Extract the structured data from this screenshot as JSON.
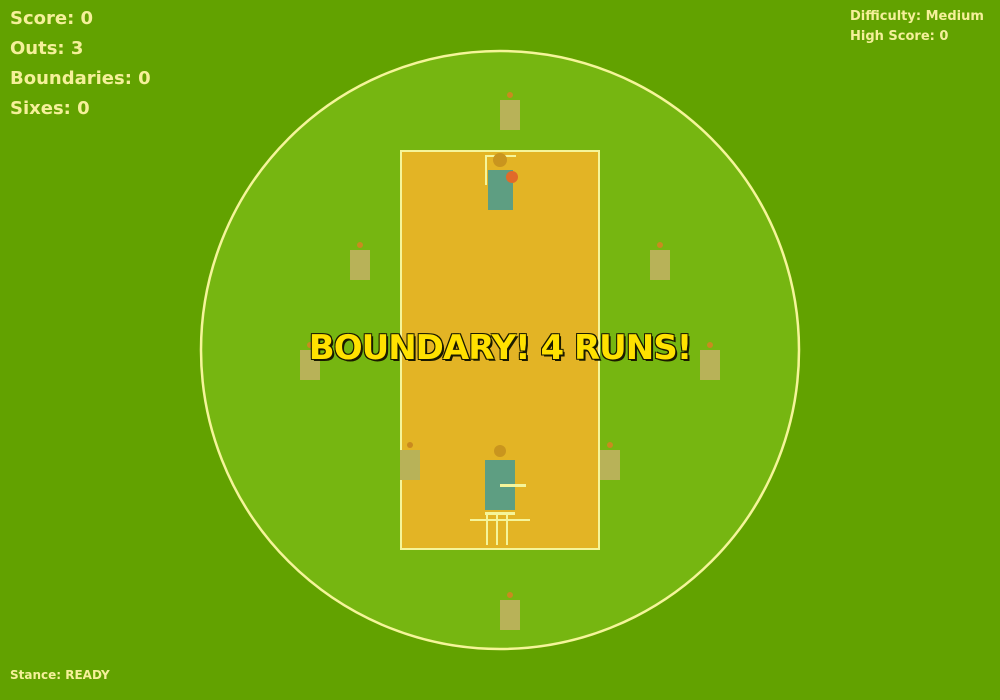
{
  "hud": {
    "score": "Score: 0",
    "outs": "Outs: 3",
    "boundaries": "Boundaries: 0",
    "sixes": "Sixes: 0",
    "difficulty": "Difficulty: Medium",
    "high_score": "High Score: 0"
  },
  "stance": "Stance: READY",
  "banner": "BOUNDARY! 4 RUNS!",
  "colors": {
    "outfield": "#62a200",
    "infield": "#76b611",
    "boundary_rope": "#f5f59a",
    "pitch": "#e3b425",
    "fielder": "#b8b258",
    "player_shirt": "#5e9e82",
    "player_head": "#c9951e",
    "ball": "#e16a2a",
    "banner_text": "#ffe100"
  }
}
